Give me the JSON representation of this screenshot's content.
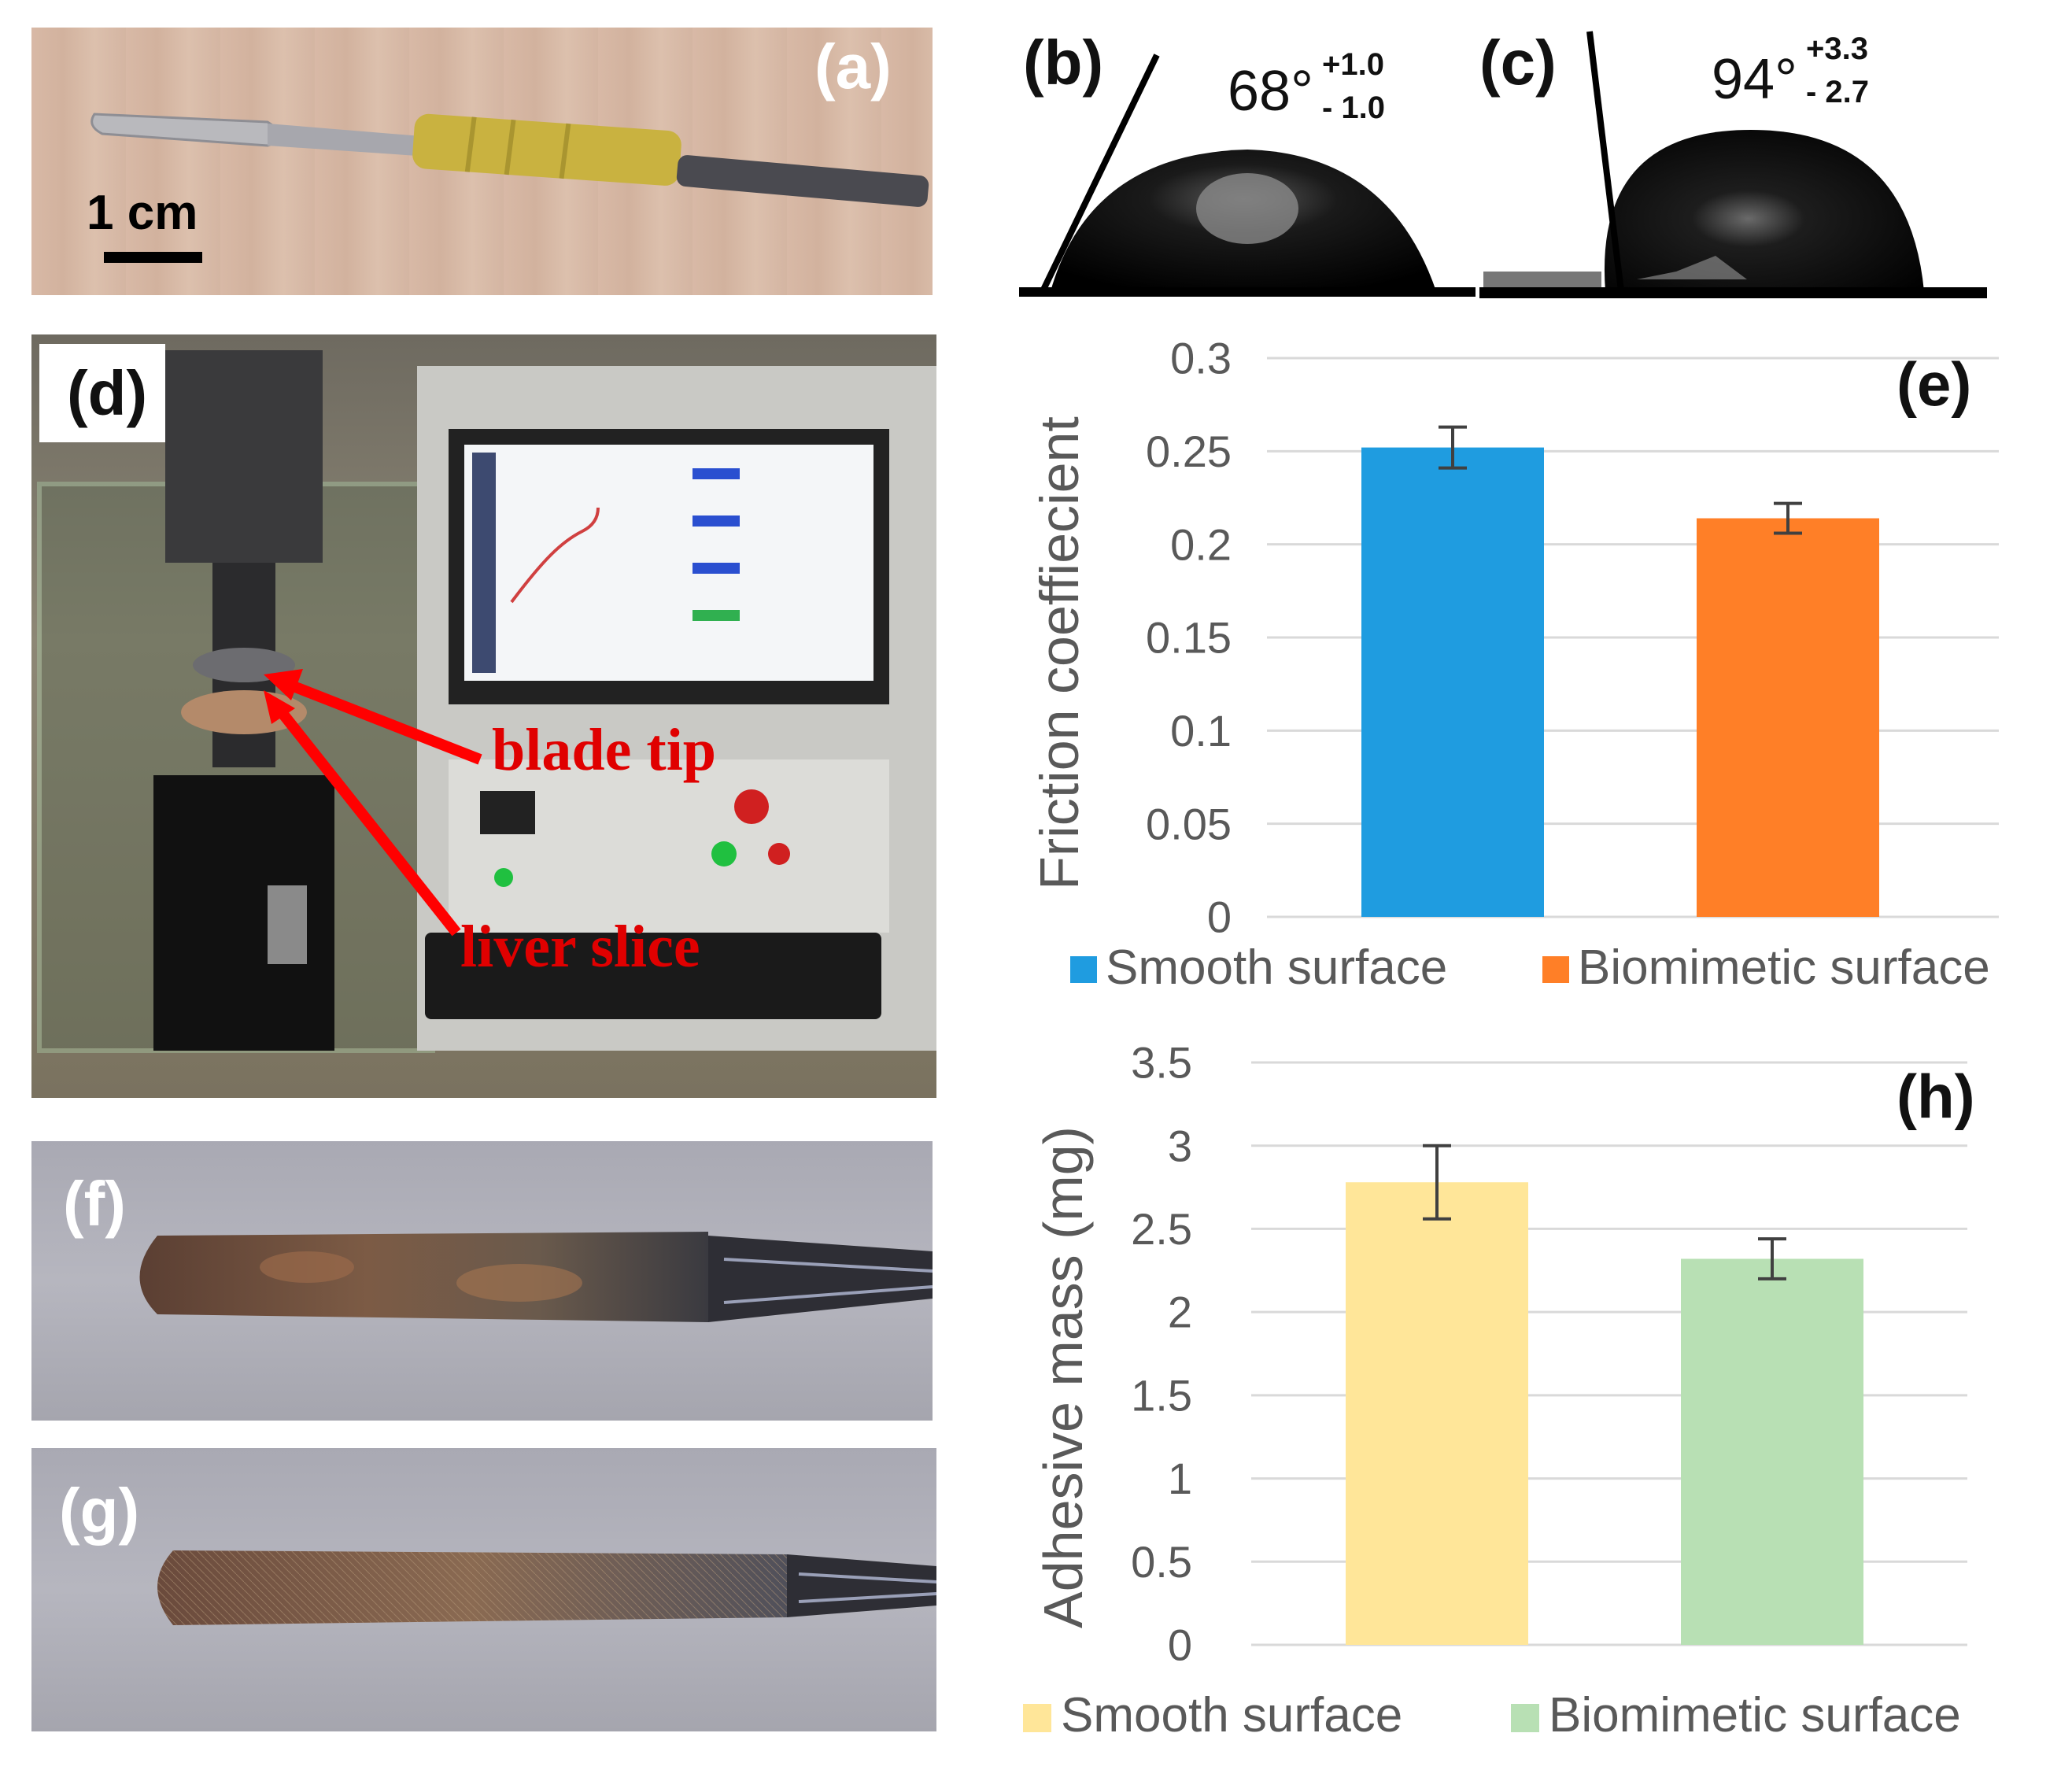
{
  "panels": {
    "a": {
      "label": "(a)",
      "scale_bar": "1 cm"
    },
    "b": {
      "label": "(b)",
      "angle": "68°",
      "plus": "+1.0",
      "minus": "- 1.0"
    },
    "c": {
      "label": "(c)",
      "angle": "94°",
      "plus": "+3.3",
      "minus": "- 2.7"
    },
    "d": {
      "label": "(d)",
      "annotations": {
        "blade_tip": "blade tip",
        "liver_slice": "liver slice"
      }
    },
    "f": {
      "label": "(f)"
    },
    "g": {
      "label": "(g)"
    }
  },
  "colors": {
    "smooth_e": "#1f9ce0",
    "biomimetic_e": "#ff7f27",
    "smooth_h": "#ffe699",
    "biomimetic_h": "#b8e0b4",
    "grid": "#d9d9d9",
    "axis_text": "#595959"
  },
  "chart_data": [
    {
      "type": "bar",
      "panel_label": "(e)",
      "categories": [
        "Smooth surface",
        "Biomimetic surface"
      ],
      "values": [
        0.252,
        0.214
      ],
      "errors": [
        0.011,
        0.008
      ],
      "ylabel": "Friction coeffiecient",
      "ylim": [
        0,
        0.3
      ],
      "yticks": [
        "0",
        "0.05",
        "0.1",
        "0.15",
        "0.2",
        "0.25",
        "0.3"
      ],
      "legend": [
        "Smooth surface",
        "Biomimetic surface"
      ],
      "legend_position": "bottom",
      "grid": true
    },
    {
      "type": "bar",
      "panel_label": "(h)",
      "categories": [
        "Smooth surface",
        "Biomimetic surface"
      ],
      "values": [
        2.78,
        2.32
      ],
      "errors": [
        0.22,
        0.12
      ],
      "ylabel": "Adhesive mass (mg)",
      "ylim": [
        0,
        3.5
      ],
      "yticks": [
        "0",
        "0.5",
        "1",
        "1.5",
        "2",
        "2.5",
        "3",
        "3.5"
      ],
      "legend": [
        "Smooth surface",
        "Biomimetic surface"
      ],
      "legend_position": "bottom",
      "grid": true
    }
  ]
}
